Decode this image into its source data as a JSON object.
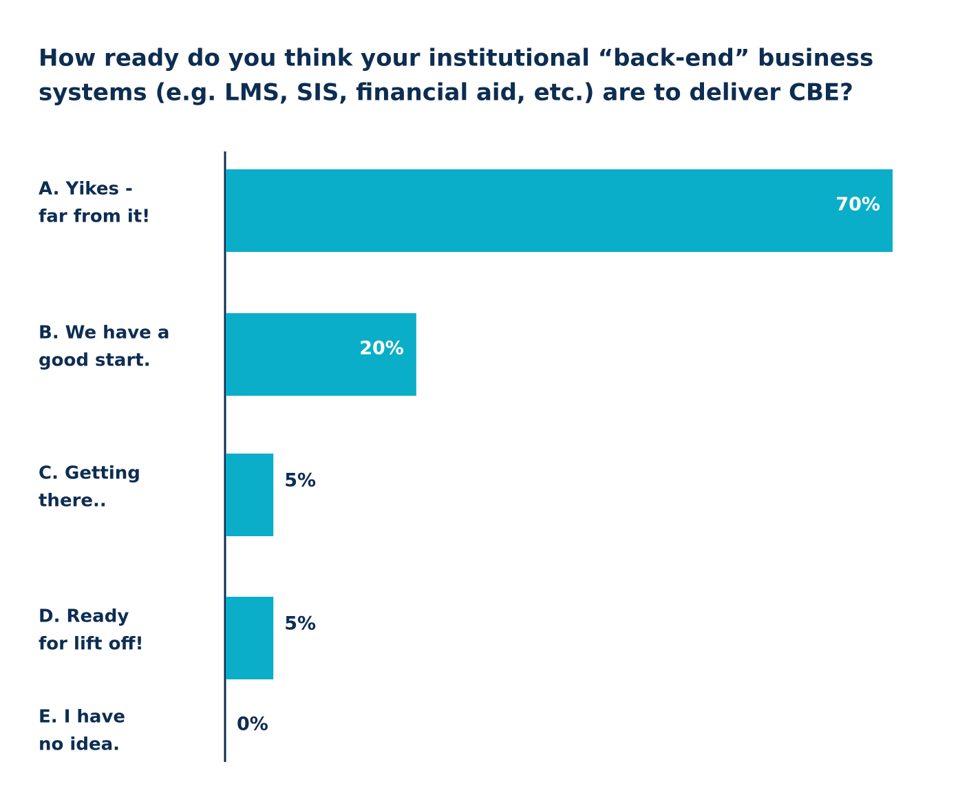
{
  "chart_data": {
    "type": "hbar",
    "title": [
      "How ready do you think your institutional “back-end” business",
      "systems (e.g. LMS, SIS, financial aid, etc.) are to deliver CBE?"
    ],
    "categories": [
      [
        "A. Yikes -",
        "far from it!"
      ],
      [
        "B. We have a",
        "good start."
      ],
      [
        "C. Getting",
        "there.."
      ],
      [
        "D. Ready",
        "for lift off!"
      ],
      [
        "E. I have",
        "no idea."
      ]
    ],
    "values": [
      70,
      20,
      5,
      5,
      0
    ],
    "value_labels": [
      "70%",
      "20%",
      "5%",
      "5%",
      "0%"
    ],
    "xlim": [
      0,
      70
    ],
    "color": "#0aaec8"
  }
}
